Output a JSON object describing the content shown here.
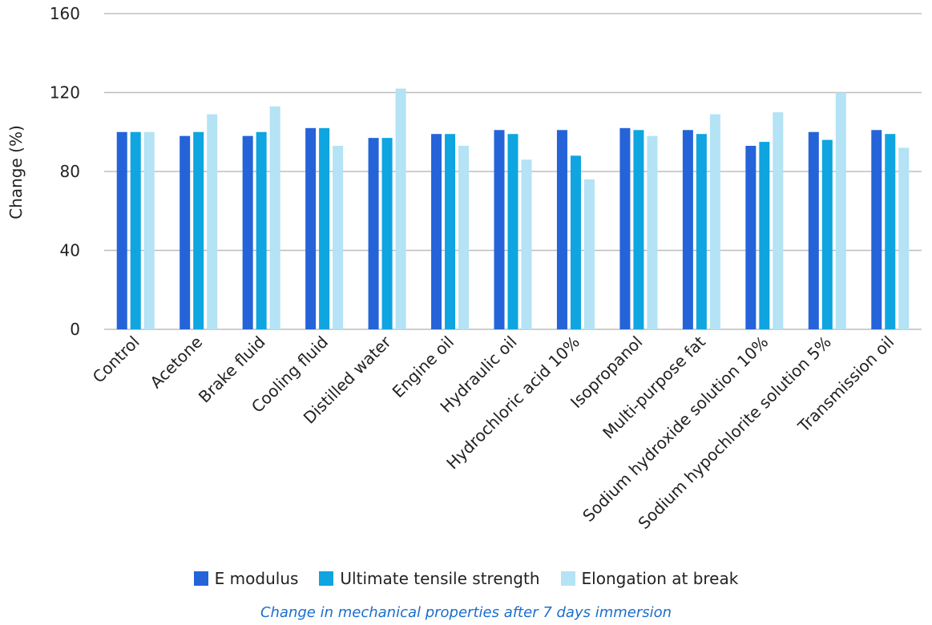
{
  "chart_data": {
    "type": "bar",
    "categories": [
      "Control",
      "Acetone",
      "Brake fluid",
      "Cooling fluid",
      "Distilled water",
      "Engine oil",
      "Hydraulic oil",
      "Hydrochloric acid 10%",
      "Isopropanol",
      "Multi-purpose fat",
      "Sodium hydroxide solution 10%",
      "Sodium hypochlorite solution 5%",
      "Transmission oil"
    ],
    "series": [
      {
        "name": "E modulus",
        "color": "#2563d9",
        "values": [
          100,
          98,
          98,
          102,
          97,
          99,
          101,
          101,
          102,
          101,
          93,
          100,
          101
        ]
      },
      {
        "name": "Ultimate tensile strength",
        "color": "#0ea5e0",
        "values": [
          100,
          100,
          100,
          102,
          97,
          99,
          99,
          88,
          101,
          99,
          95,
          96,
          99
        ]
      },
      {
        "name": "Elongation at break",
        "color": "#b3e3f4",
        "values": [
          100,
          109,
          113,
          93,
          122,
          93,
          86,
          76,
          98,
          109,
          110,
          120,
          92
        ]
      }
    ],
    "ylabel": "Change (%)",
    "ylim": [
      0,
      160
    ],
    "yticks": [
      0,
      40,
      80,
      120,
      160
    ],
    "grid": true,
    "legend": "bottom",
    "caption": "Change in mechanical properties after 7 days immersion"
  }
}
